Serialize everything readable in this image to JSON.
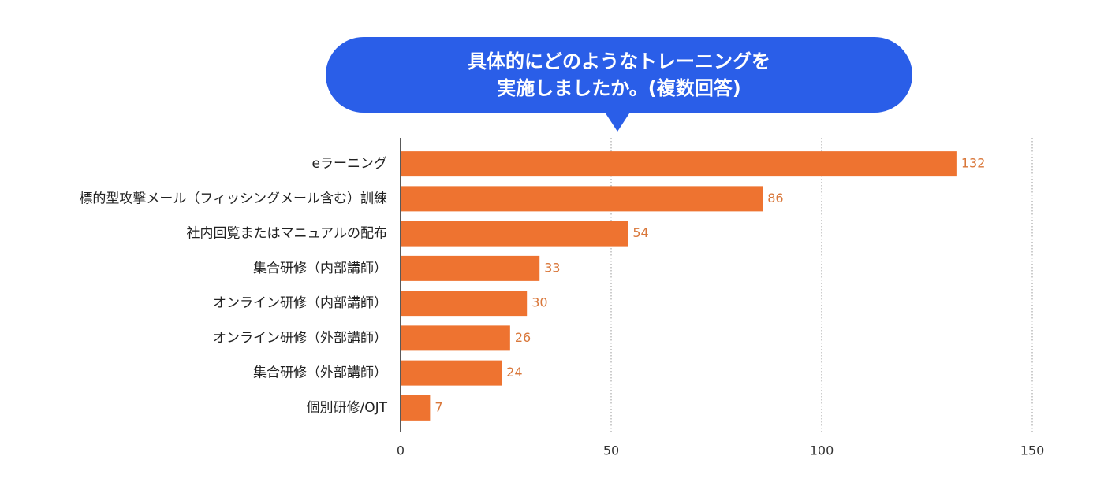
{
  "chart_data": {
    "type": "barh",
    "title": [
      "具体的にどのようなトレーニングを",
      "実施しましたか。(複数回答)"
    ],
    "categories": [
      "eラーニング",
      "標的型攻撃メール（フィッシングメール含む）訓練",
      "社内回覧またはマニュアルの配布",
      "集合研修（内部講師）",
      "オンライン研修（内部講師）",
      "オンライン研修（外部講師）",
      "集合研修（外部講師）",
      "個別研修/OJT"
    ],
    "values": [
      132,
      86,
      54,
      33,
      30,
      26,
      24,
      7
    ],
    "color": "#ee7330",
    "title_color": "#2a5ee8",
    "xlim": [
      0,
      150
    ],
    "xticks": [
      0,
      50,
      100,
      150
    ],
    "grid": true
  }
}
